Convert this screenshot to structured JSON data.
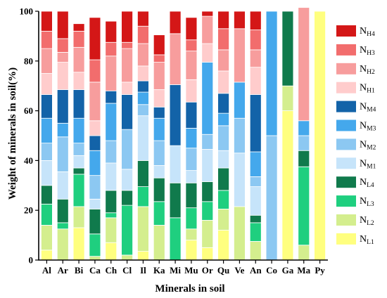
{
  "chart_data": {
    "type": "bar",
    "stacked": true,
    "xlabel": "Minerals in soil",
    "ylabel": "Weight of minerals in soil(%)",
    "ylim": [
      0,
      100
    ],
    "yticks": [
      0,
      20,
      40,
      60,
      80,
      100
    ],
    "categories": [
      "Al",
      "Ar",
      "Bi",
      "Ca",
      "Ch",
      "Cl",
      "Il",
      "Ka",
      "Mi",
      "Mu",
      "Or",
      "Qu",
      "Ve",
      "An",
      "Co",
      "Ga",
      "Ma",
      "Py"
    ],
    "legend_position": "right",
    "series": [
      {
        "name": "NL1",
        "main": "N",
        "sub": "L1",
        "color": "#ffff7f",
        "values": [
          4,
          0,
          13,
          0,
          7,
          0,
          3.5,
          0,
          0,
          8,
          5,
          12,
          0,
          0,
          0,
          60,
          0,
          100
        ]
      },
      {
        "name": "NL2",
        "main": "N",
        "sub": "L2",
        "color": "#d4ee8e",
        "values": [
          10,
          12.5,
          8.5,
          1.5,
          10,
          2,
          18,
          14,
          0,
          4.5,
          11,
          8.5,
          21.5,
          7.5,
          0,
          10,
          6,
          0
        ]
      },
      {
        "name": "NL3",
        "main": "N",
        "sub": "L3",
        "color": "#1fcf7f",
        "values": [
          8.5,
          2.5,
          13,
          9,
          2,
          20,
          8,
          9.5,
          17,
          8.5,
          7.5,
          7.5,
          0,
          7.5,
          0,
          0,
          31.5,
          0
        ]
      },
      {
        "name": "NL4",
        "main": "N",
        "sub": "L4",
        "color": "#107a4c",
        "values": [
          7.5,
          9.5,
          2.5,
          10,
          9,
          6,
          10.5,
          9.5,
          14,
          10,
          8,
          9,
          0,
          3,
          0,
          30,
          6.5,
          0
        ]
      },
      {
        "name": "NM1",
        "main": "N",
        "sub": "M1",
        "color": "#c6e4fa",
        "values": [
          10,
          11,
          5,
          4,
          11,
          8.5,
          18,
          5,
          15,
          5,
          13,
          7,
          21.5,
          11.5,
          0,
          0,
          0,
          0
        ]
      },
      {
        "name": "NM2",
        "main": "N",
        "sub": "M2",
        "color": "#8cc8f2",
        "values": [
          7,
          14,
          5,
          9.5,
          9,
          16,
          4.5,
          10,
          0,
          9,
          6,
          10,
          14,
          4,
          50,
          0,
          6,
          0
        ]
      },
      {
        "name": "NM3",
        "main": "N",
        "sub": "M3",
        "color": "#44a8ec",
        "values": [
          10,
          5.5,
          10,
          10,
          15,
          0,
          5,
          9,
          0,
          8,
          29,
          5,
          14.5,
          10,
          50,
          0,
          6,
          0
        ]
      },
      {
        "name": "NM4",
        "main": "N",
        "sub": "M4",
        "color": "#1363a8",
        "values": [
          9.5,
          13.5,
          11.5,
          6,
          5,
          14,
          4.5,
          4.5,
          24.5,
          10.5,
          0,
          8,
          0,
          23,
          0,
          0,
          0,
          0
        ]
      },
      {
        "name": "NH1",
        "main": "N",
        "sub": "H1",
        "color": "#ffcccc",
        "values": [
          8.5,
          11,
          7,
          6,
          0,
          5,
          6,
          7,
          0,
          9,
          7.5,
          9,
          0,
          11,
          0,
          0,
          0,
          0
        ]
      },
      {
        "name": "NH2",
        "main": "N",
        "sub": "H2",
        "color": "#f79d9d",
        "values": [
          10,
          4,
          10,
          15.5,
          14,
          13.5,
          9,
          11,
          20.5,
          11.5,
          11,
          8.5,
          21.5,
          7,
          0,
          0,
          45.5,
          0
        ]
      },
      {
        "name": "NH3",
        "main": "N",
        "sub": "H3",
        "color": "#f26d6d",
        "values": [
          7,
          5.5,
          6.5,
          9,
          5.5,
          2.5,
          7,
          3,
          0,
          4.5,
          0,
          8.5,
          0,
          8,
          0,
          0,
          0,
          0
        ]
      },
      {
        "name": "NH4",
        "main": "N",
        "sub": "H4",
        "color": "#d41717",
        "values": [
          8,
          11,
          3,
          17,
          8.5,
          12.5,
          6,
          8,
          9,
          9,
          2,
          7,
          7,
          7.5,
          0,
          0,
          0,
          0
        ]
      }
    ]
  }
}
